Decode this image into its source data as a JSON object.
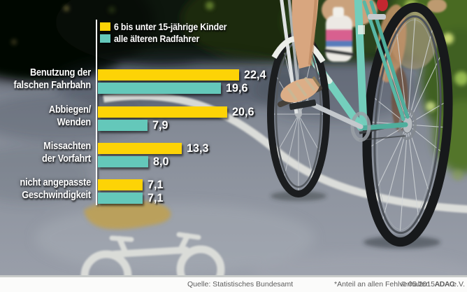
{
  "chart_data": {
    "type": "bar",
    "orientation": "horizontal",
    "title": "",
    "categories": [
      "Benutzung der falschen Fahrbahn",
      "Abbiegen/Wenden",
      "Missachten der Vorfahrt",
      "nicht angepasste Geschwindigkeit"
    ],
    "series": [
      {
        "name": "6 bis unter 15-jährige Kinder",
        "color": "#fdd306",
        "values": [
          22.4,
          20.6,
          13.3,
          7.1
        ]
      },
      {
        "name": "alle älteren Radfahrer",
        "color": "#64c8ba",
        "values": [
          19.6,
          7.9,
          8.0,
          7.1
        ]
      }
    ],
    "value_label_format": "decimal-comma",
    "xlim": [
      0,
      24
    ],
    "grid": false,
    "legend_position": "top-left",
    "note": "*Anteil an allen Fehlverhalten"
  },
  "colors": {
    "children_bar": "#fdd306",
    "older_bar": "#64c8ba",
    "axis": "#ffffff"
  },
  "legend": {
    "items": [
      {
        "label": "6 bis unter 15-jährige Kinder",
        "color": "#fdd306"
      },
      {
        "label": "alle älteren Radfahrer",
        "color": "#64c8ba"
      }
    ]
  },
  "rows": [
    {
      "label1": "Benutzung der",
      "label2": "falschen Fahrbahn",
      "children": {
        "value": 22.4,
        "display": "22,4"
      },
      "older": {
        "value": 19.6,
        "display": "19,6"
      }
    },
    {
      "label1": "Abbiegen/",
      "label2": "Wenden",
      "children": {
        "value": 20.6,
        "display": "20,6"
      },
      "older": {
        "value": 7.9,
        "display": "7,9"
      }
    },
    {
      "label1": "Missachten",
      "label2": "der Vorfahrt",
      "children": {
        "value": 13.3,
        "display": "13,3"
      },
      "older": {
        "value": 8.0,
        "display": "8,0"
      }
    },
    {
      "label1": "nicht angepasste",
      "label2": "Geschwindigkeit",
      "children": {
        "value": 7.1,
        "display": "7,1"
      },
      "older": {
        "value": 7.1,
        "display": "7,1"
      }
    }
  ],
  "footer": {
    "source": "Quelle: Statistisches Bundesamt",
    "note": "*Anteil an allen Fehlverhalten",
    "copyright": "© 05.2015",
    "brand": "ADAC",
    "suffix": "e.V."
  },
  "photo": {
    "description": "cyclist on mint-green bicycle riding on asphalt road with painted white bike-lane symbol and worn yellow arrow marking, trees in background"
  }
}
